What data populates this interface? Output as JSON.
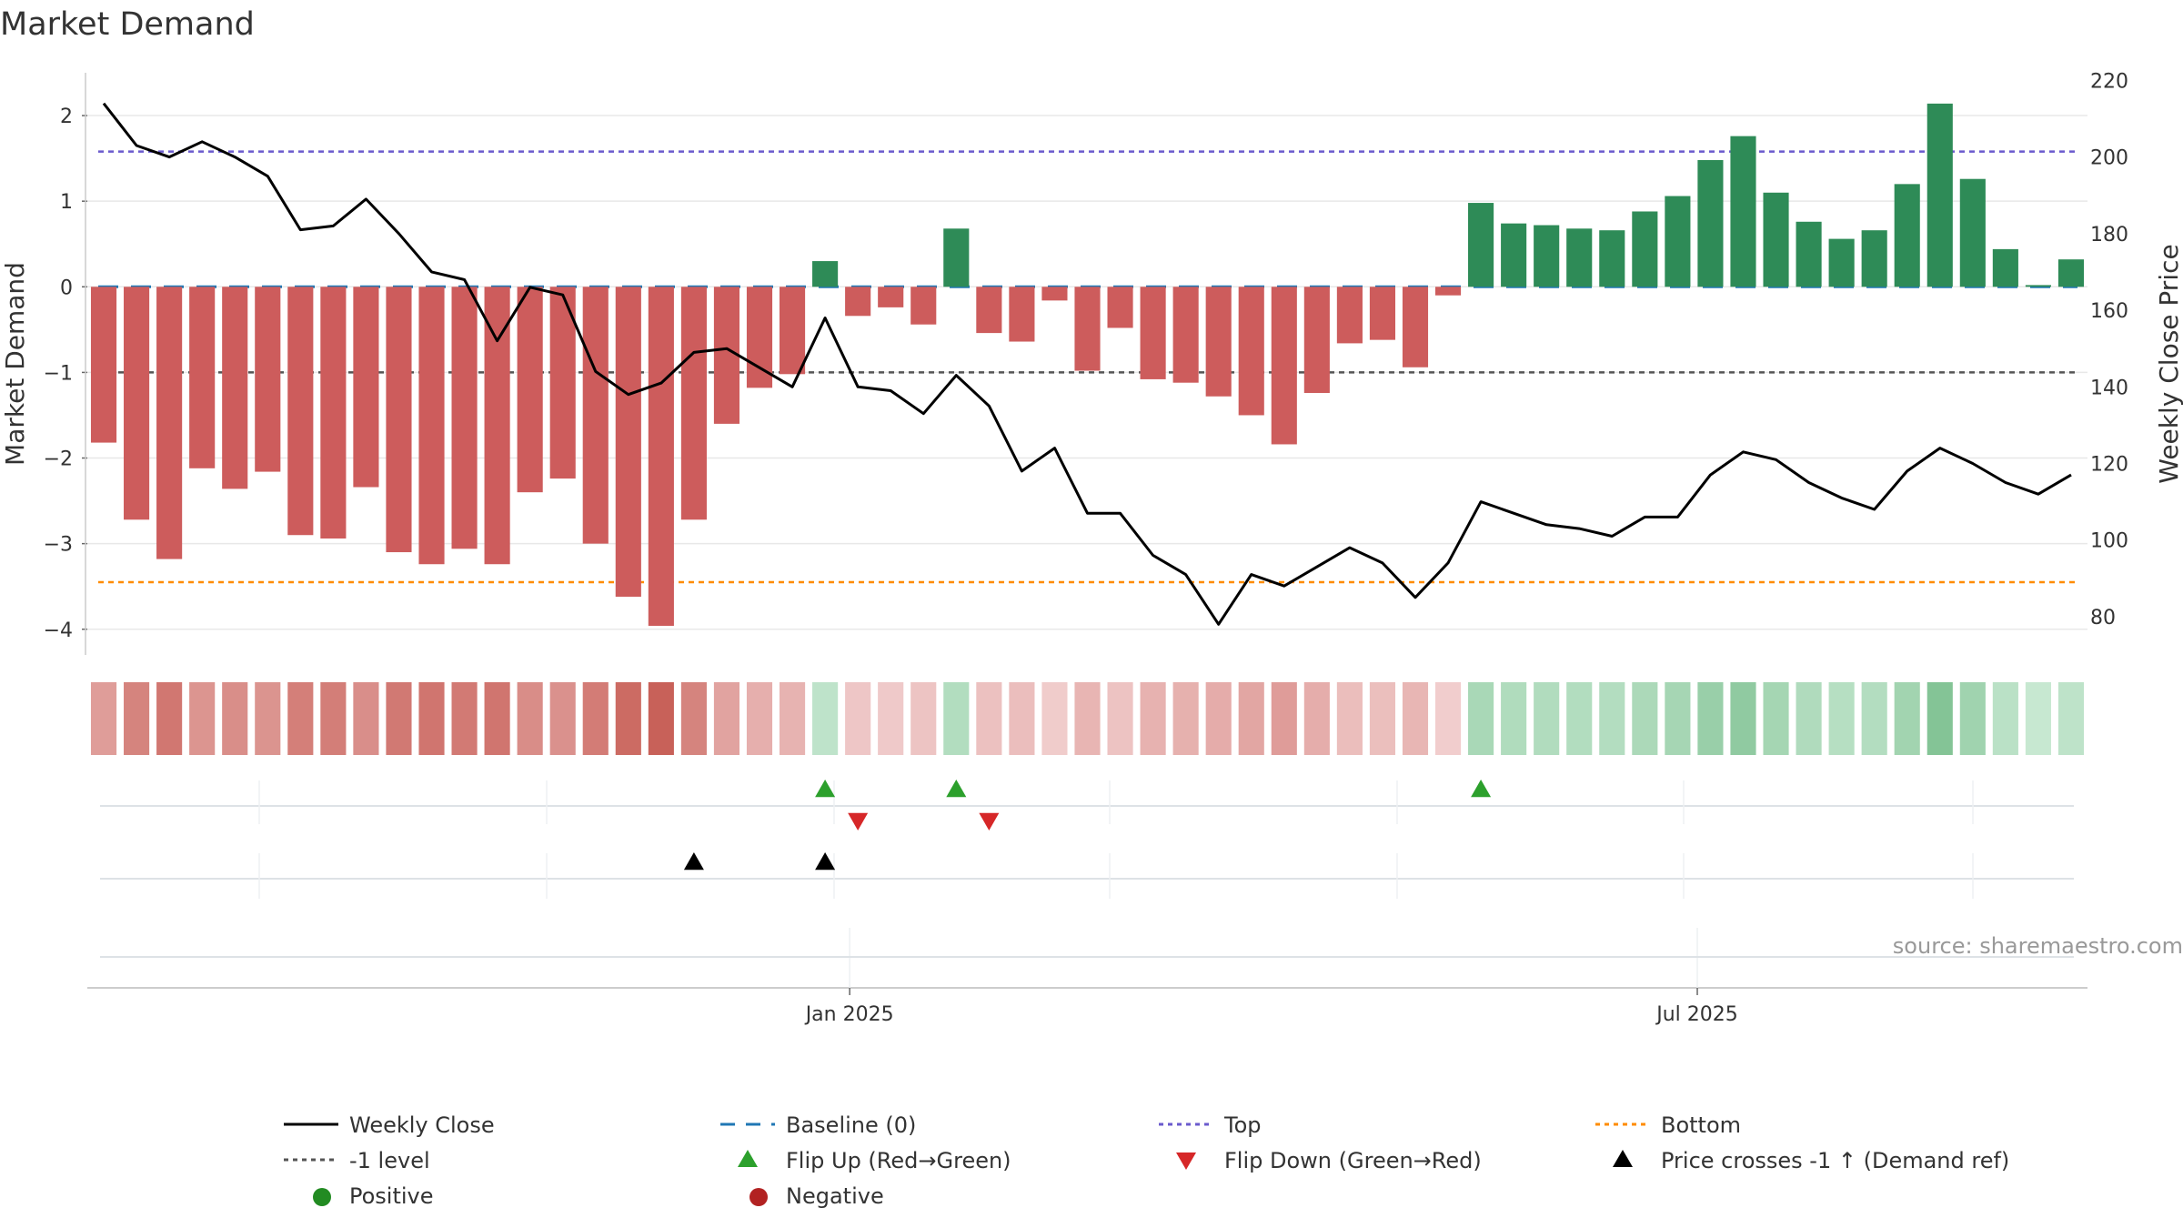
{
  "chart_data": {
    "type": "bar+line",
    "title": "Market Demand",
    "ylabel_left": "Market Demand",
    "ylabel_right": "Weekly Close Price",
    "ylim_left": [
      -4.3,
      2.5
    ],
    "ylim_right": [
      70,
      222
    ],
    "yticks_left": [
      2,
      1,
      0,
      -1,
      -2,
      -3,
      -4
    ],
    "ytick_labels_left": [
      "2",
      "1",
      "0",
      "−1",
      "−2",
      "−3",
      "−4"
    ],
    "yticks_right": [
      220,
      200,
      180,
      160,
      140,
      120,
      100,
      80
    ],
    "x_tick_labels": [
      {
        "label": "Jan 2025",
        "week": 22.75
      },
      {
        "label": "Jul 2025",
        "week": 48.6
      }
    ],
    "n_weeks": 61,
    "demand": [
      -1.82,
      -2.72,
      -3.18,
      -2.12,
      -2.36,
      -2.16,
      -2.9,
      -2.94,
      -2.34,
      -3.1,
      -3.24,
      -3.06,
      -3.24,
      -2.4,
      -2.24,
      -3.0,
      -3.62,
      -3.96,
      -2.72,
      -1.6,
      -1.18,
      -1.02,
      0.3,
      -0.34,
      -0.24,
      -0.44,
      0.68,
      -0.54,
      -0.64,
      -0.16,
      -0.98,
      -0.48,
      -1.08,
      -1.12,
      -1.28,
      -1.5,
      -1.84,
      -1.24,
      -0.66,
      -0.62,
      -0.94,
      -0.1,
      0.98,
      0.74,
      0.72,
      0.68,
      0.66,
      0.88,
      1.06,
      1.48,
      1.76,
      1.1,
      0.76,
      0.56,
      0.66,
      1.2,
      2.14,
      1.26,
      0.44,
      0.02,
      0.32
    ],
    "close": [
      214,
      203,
      200,
      204,
      200,
      195,
      181,
      182,
      189,
      180,
      170,
      168,
      152,
      166,
      164,
      144,
      138,
      141,
      149,
      150,
      145,
      140,
      158,
      140,
      139,
      133,
      143,
      135,
      118,
      124,
      107,
      107,
      96,
      91,
      78,
      91,
      88,
      93,
      98,
      94,
      85,
      94,
      110,
      107,
      104,
      103,
      101,
      106,
      106,
      117,
      123,
      121,
      115,
      111,
      108,
      118,
      124,
      120,
      115,
      112,
      117
    ],
    "series": [
      {
        "name": "Weekly Close",
        "color": "#000000",
        "style": "solid-line"
      },
      {
        "name": "Baseline (0)",
        "value": 0,
        "color": "#1f77b4",
        "style": "dashed-line"
      },
      {
        "name": "Top",
        "value": 1.58,
        "color": "#6a5acd",
        "style": "dotted-line"
      },
      {
        "name": "Bottom",
        "value": -3.45,
        "color": "#ff8c00",
        "style": "dotted-line"
      },
      {
        "name": "-1 level",
        "value": -1,
        "color": "#555555",
        "style": "dotted-line"
      }
    ],
    "flip_up_weeks": [
      22,
      26,
      42
    ],
    "flip_down_weeks": [
      23,
      27
    ],
    "price_cross_weeks": [
      18,
      22
    ],
    "legend": [
      {
        "label": "Weekly Close",
        "symbol": "line",
        "color": "#000000"
      },
      {
        "label": "Baseline (0)",
        "symbol": "dash",
        "color": "#1f77b4"
      },
      {
        "label": "Top",
        "symbol": "dot",
        "color": "#6a5acd"
      },
      {
        "label": "Bottom",
        "symbol": "dot",
        "color": "#ff8c00"
      },
      {
        "label": "-1 level",
        "symbol": "dot",
        "color": "#555555"
      },
      {
        "label": "Flip Up (Red→Green)",
        "symbol": "tri-up",
        "color": "#2ca02c"
      },
      {
        "label": "Flip Down (Green→Red)",
        "symbol": "tri-down",
        "color": "#d62728"
      },
      {
        "label": "Price crosses -1 ↑ (Demand ref)",
        "symbol": "tri-up",
        "color": "#000000"
      },
      {
        "label": "Positive",
        "symbol": "circle",
        "color": "#228b22"
      },
      {
        "label": "Negative",
        "symbol": "circle",
        "color": "#b22222"
      }
    ],
    "legend_position": "bottom",
    "colors": {
      "positive_bar": "#2e8b57",
      "negative_bar": "#cd5c5c"
    },
    "source": "source: sharemaestro.com"
  }
}
